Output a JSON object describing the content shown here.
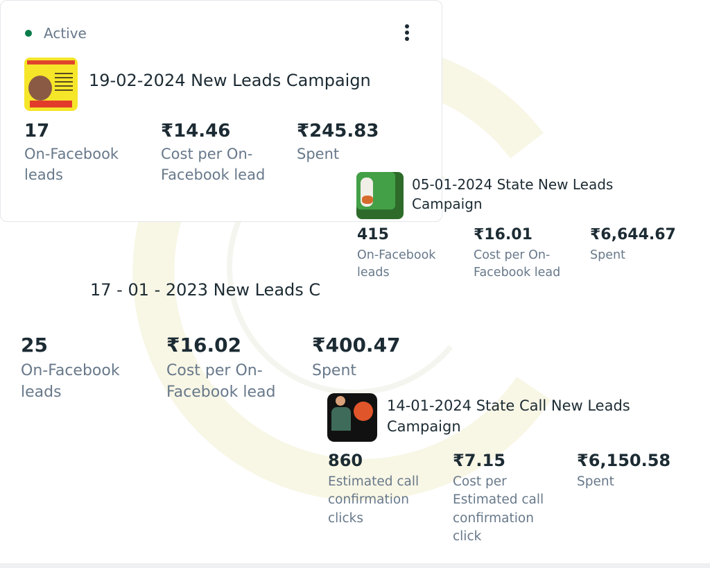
{
  "colors": {
    "active_dot": "#0a7c4a",
    "text": "#1c2b33",
    "muted": "#67788a"
  },
  "card1": {
    "status": "Active",
    "menu_icon": "more-vertical-icon",
    "title": "19-02-2024 New Leads Campaign",
    "stats": [
      {
        "value": "17",
        "label": "On-Facebook leads"
      },
      {
        "value": "₹14.46",
        "label": "Cost per On-Facebook lead"
      },
      {
        "value": "₹245.83",
        "label": "Spent"
      }
    ]
  },
  "card2": {
    "title": "05-01-2024 State New Leads Campaign",
    "stats": [
      {
        "value": "415",
        "label": "On-Facebook leads"
      },
      {
        "value": "₹16.01",
        "label": "Cost per On-Facebook lead"
      },
      {
        "value": "₹6,644.67",
        "label": "Spent"
      }
    ]
  },
  "card3": {
    "title": "17 - 01 - 2023 New Leads C",
    "stats": [
      {
        "value": "25",
        "label": "On-Facebook leads"
      },
      {
        "value": "₹16.02",
        "label": "Cost per On-Facebook lead"
      },
      {
        "value": "₹400.47",
        "label": "Spent"
      }
    ]
  },
  "card4": {
    "title": "14-01-2024 State Call New Leads Campaign",
    "stats": [
      {
        "value": "860",
        "label": "Estimated call confirmation clicks"
      },
      {
        "value": "₹7.15",
        "label": "Cost per Estimated call confirmation click"
      },
      {
        "value": "₹6,150.58",
        "label": "Spent"
      }
    ]
  }
}
